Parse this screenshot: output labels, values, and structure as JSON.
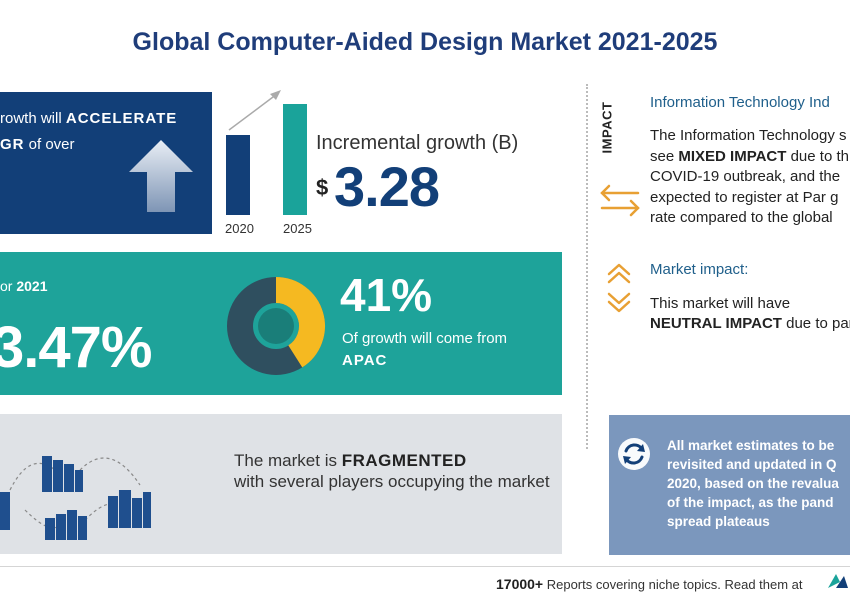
{
  "title": "Global Computer-Aided Design Market 2021-2025",
  "growth": {
    "line1_prefix": "rowth will ",
    "line1_emph": "ACCELERATE",
    "line2_emph": "GR",
    "line2_rest": " of over"
  },
  "incremental": {
    "years": [
      "2020",
      "2025"
    ],
    "label": "Incremental growth (B)",
    "currency": "$",
    "value": "3.28"
  },
  "yoy": {
    "label_prefix": "or ",
    "year": "2021",
    "value": "3.47%"
  },
  "region": {
    "percent": "41%",
    "text": "Of growth will come from",
    "name": "APAC",
    "share": 0.41
  },
  "fragmented": {
    "prefix": "The market is ",
    "emph": "FRAGMENTED",
    "rest": "with several players occupying the market"
  },
  "impact": {
    "vertical_label": "IMPACT",
    "it_title": "Information Technology Ind",
    "it_line1": "The Information Technology s",
    "it_line2_prefix": "see ",
    "it_line2_emph": "MIXED IMPACT",
    "it_line2_rest": " due to th",
    "it_line3": "COVID-19 outbreak, and the",
    "it_line4": "expected to register at Par g",
    "it_line5": "rate compared to the global",
    "market_title": "Market impact:",
    "market_line1": "This market will have",
    "market_line2_emph": "NEUTRAL IMPACT",
    "market_line2_rest": " due to pan"
  },
  "note": {
    "lines": [
      "All market estimates to be",
      "revisited and updated in Q",
      "2020, based on the revalua",
      "of the impact, as the pand",
      "spread plateaus"
    ]
  },
  "footer": {
    "count": "17000+",
    "text": " Reports covering niche topics. Read them at"
  },
  "colors": {
    "navy": "#123f78",
    "teal": "#1ea39a",
    "accent_orange": "#e8a033",
    "donut_yellow": "#f5b921",
    "note_blue": "#7b97bd"
  }
}
